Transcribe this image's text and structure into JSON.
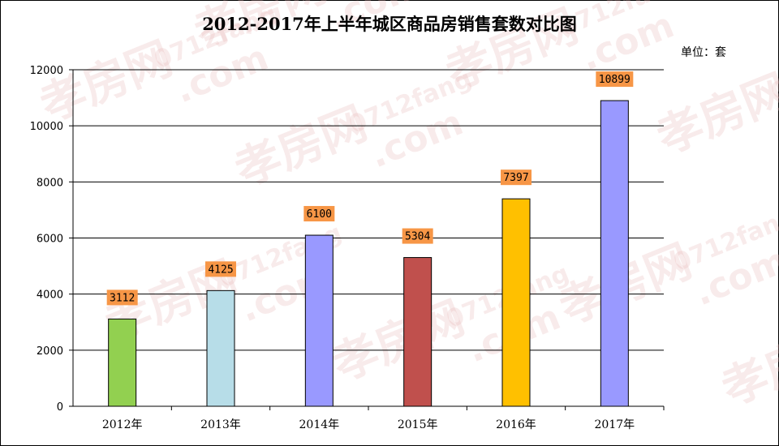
{
  "chart_data": {
    "type": "bar",
    "title": "2012-2017年上半年城区商品房销售套数对比图",
    "unit_label": "单位：套",
    "categories": [
      "2012年",
      "2013年",
      "2014年",
      "2015年",
      "2016年",
      "2017年"
    ],
    "values": [
      3112,
      4125,
      6100,
      5304,
      7397,
      10899
    ],
    "data_labels": [
      "3112",
      "4125",
      "6100",
      "5304",
      "7397",
      "10899"
    ],
    "bar_colors": [
      "#92d050",
      "#b7dde8",
      "#9999ff",
      "#c0504d",
      "#ffc000",
      "#9999ff"
    ],
    "label_box_color": "#f79646",
    "ylim": [
      0,
      12000
    ],
    "yticks": [
      0,
      2000,
      4000,
      6000,
      8000,
      10000,
      12000
    ],
    "ytick_labels": [
      "0",
      "2000",
      "4000",
      "6000",
      "8000",
      "10000",
      "12000"
    ],
    "grid": true,
    "legend": "none",
    "xlabel": "",
    "ylabel": ""
  },
  "watermark": {
    "texts": [
      "孝房网",
      "0712fang",
      ".com"
    ],
    "color": "#e8b8b8"
  }
}
